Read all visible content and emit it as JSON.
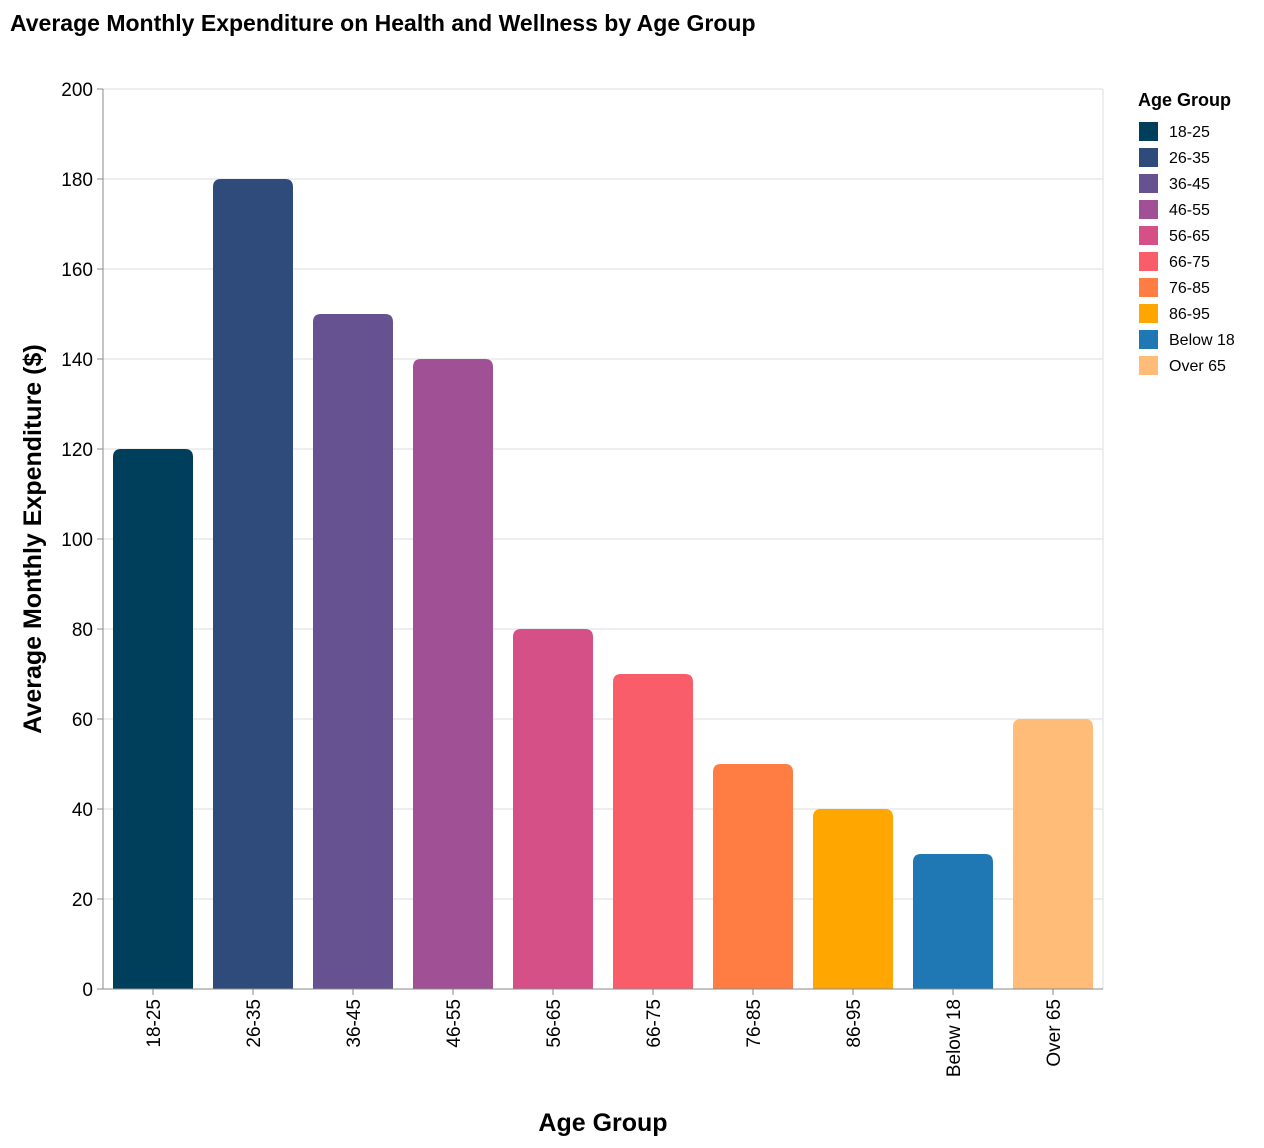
{
  "chart_data": {
    "type": "bar",
    "title": "Average Monthly Expenditure on Health and Wellness by Age Group",
    "xlabel": "Age Group",
    "ylabel": "Average Monthly Expenditure ($)",
    "ylim": [
      0,
      200
    ],
    "yticks": [
      0,
      20,
      40,
      60,
      80,
      100,
      120,
      140,
      160,
      180,
      200
    ],
    "grid": true,
    "legend_position": "top-right",
    "legend_title": "Age Group",
    "categories": [
      "18-25",
      "26-35",
      "36-45",
      "46-55",
      "56-65",
      "66-75",
      "76-85",
      "86-95",
      "Below 18",
      "Over 65"
    ],
    "values": [
      120,
      180,
      150,
      140,
      80,
      70,
      50,
      40,
      30,
      60
    ],
    "colors": [
      "#003f5c",
      "#2f4b7c",
      "#665191",
      "#a05195",
      "#d45087",
      "#f95d6a",
      "#ff7c43",
      "#ffa600",
      "#1f77b4",
      "#ffbb78"
    ]
  }
}
